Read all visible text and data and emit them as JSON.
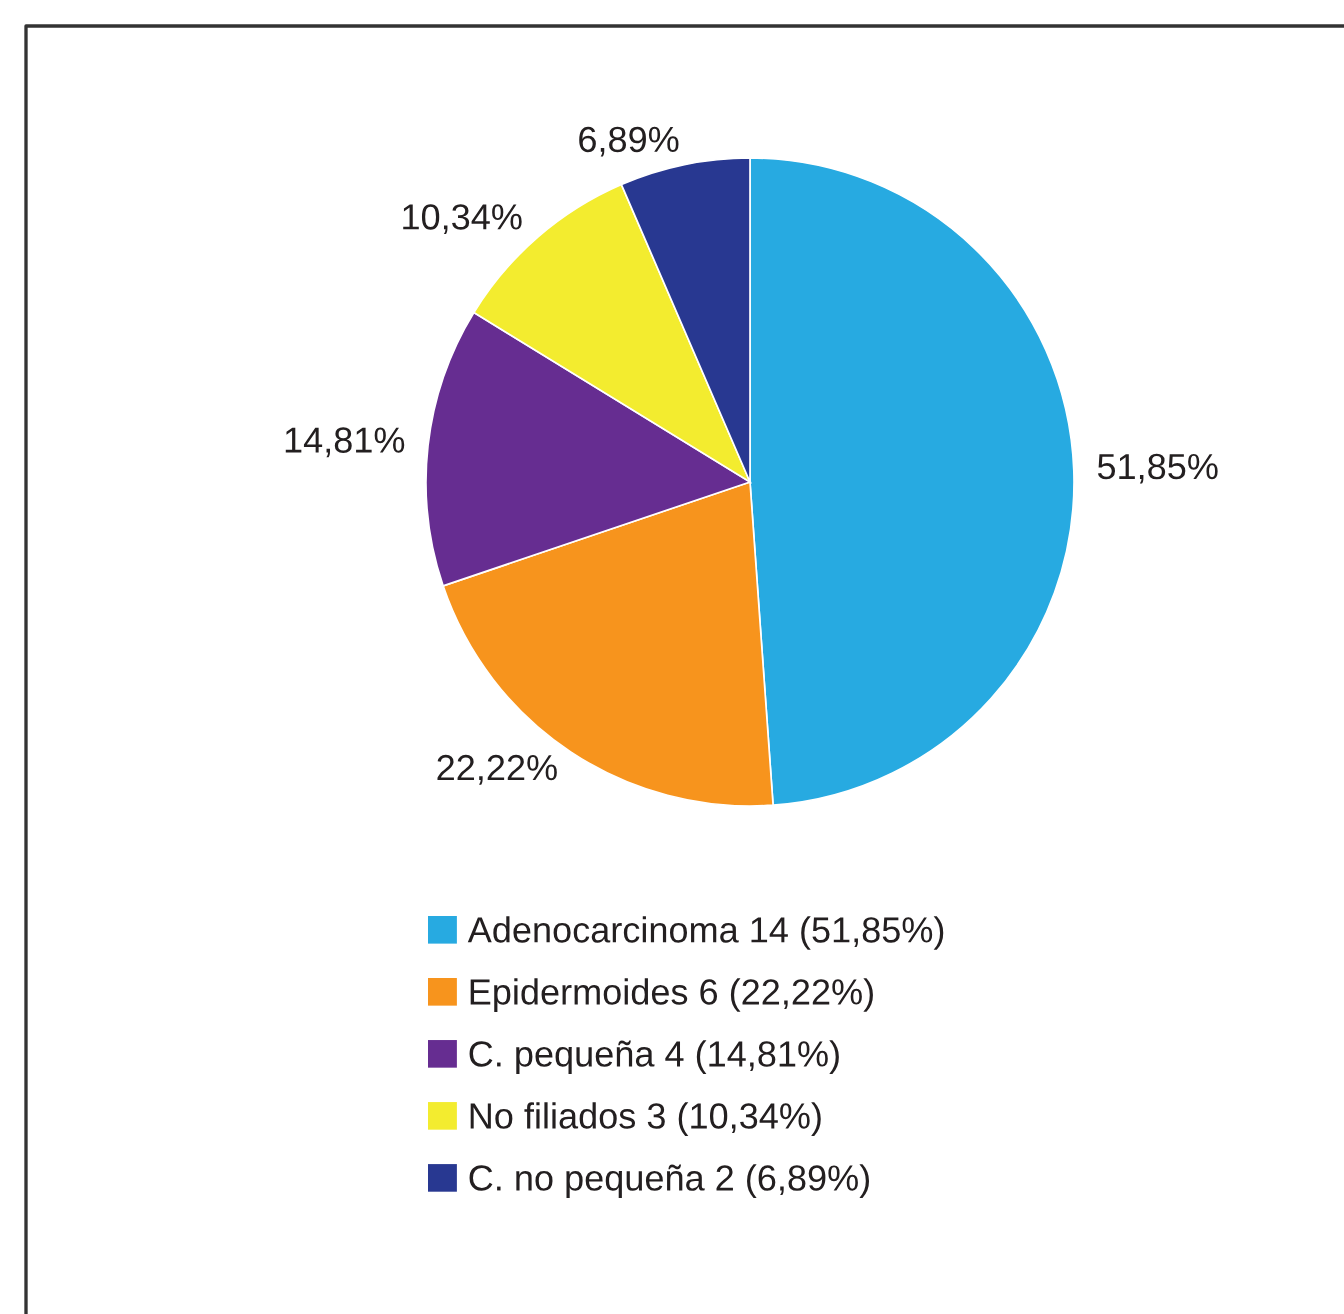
{
  "chart_data": {
    "type": "pie",
    "categories": [
      "Adenocarcinoma 14 (51,85%)",
      "Epidermoides 6 (22,22%)",
      "C. pequeña 4 (14,81%)",
      "No filiados 3 (10,34%)",
      "C. no pequeña 2 (6,89%)"
    ],
    "values": [
      51.85,
      22.22,
      14.81,
      10.34,
      6.89
    ],
    "colors": [
      "#27aae1",
      "#f7941d",
      "#662d91",
      "#f3ec2f",
      "#283891"
    ],
    "value_labels": [
      "51,85%",
      "22,22%",
      "14,81%",
      "10,34%",
      "6,89%"
    ],
    "legend": "bottom"
  }
}
